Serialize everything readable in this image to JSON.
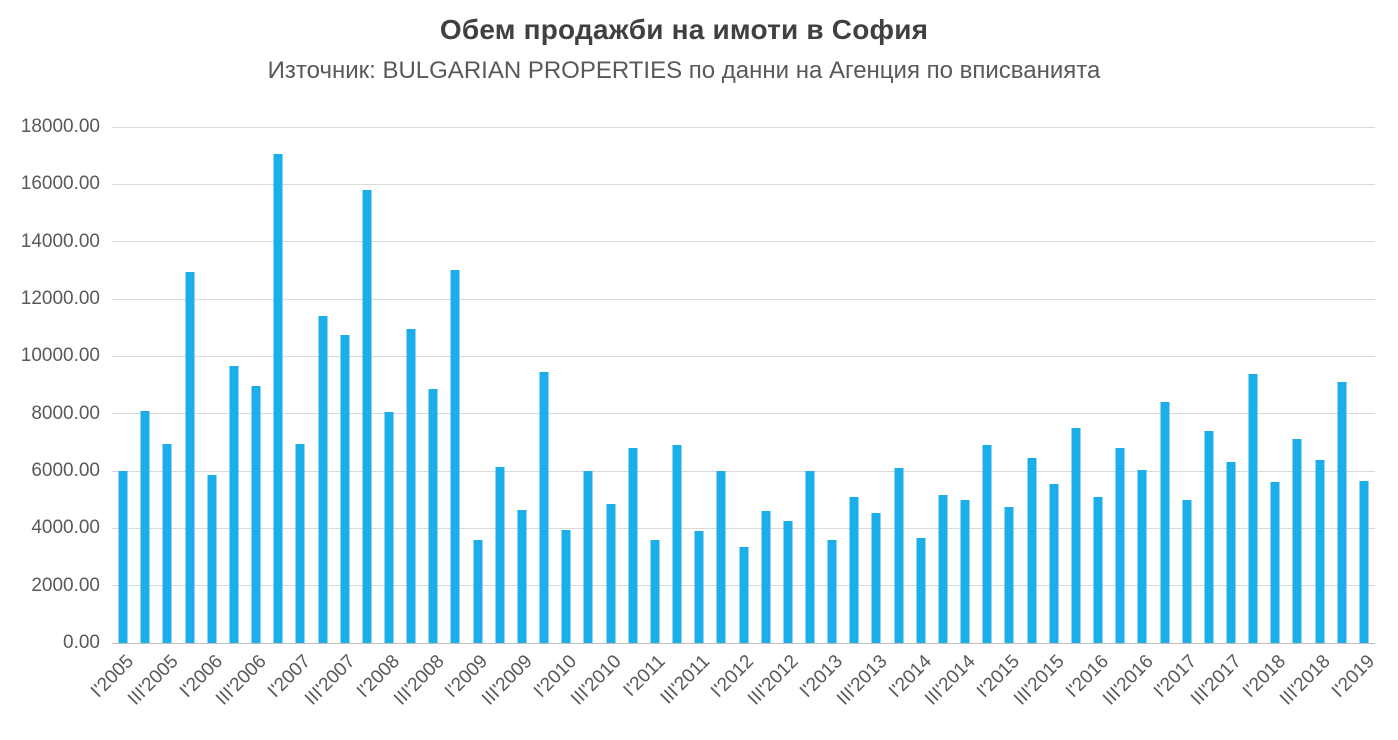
{
  "chart_data": {
    "type": "bar",
    "title": "Обем продажби на имоти в София",
    "subtitle": "Източник: BULGARIAN PROPERTIES по данни на Агенция по вписванията",
    "categories": [
      "I'2005",
      "II'2005",
      "III'2005",
      "IV'2005",
      "I'2006",
      "II'2006",
      "III'2006",
      "IV'2006",
      "I'2007",
      "II'2007",
      "III'2007",
      "IV'2007",
      "I'2008",
      "II'2008",
      "III'2008",
      "IV'2008",
      "I'2009",
      "II'2009",
      "III'2009",
      "IV'2009",
      "I'2010",
      "II'2010",
      "III'2010",
      "IV'2010",
      "I'2011",
      "II'2011",
      "III'2011",
      "IV'2011",
      "I'2012",
      "II'2012",
      "III'2012",
      "IV'2012",
      "I'2013",
      "II'2013",
      "III'2013",
      "IV'2013",
      "I'2014",
      "II'2014",
      "III'2014",
      "IV'2014",
      "I'2015",
      "II'2015",
      "III'2015",
      "IV'2015",
      "I'2016",
      "II'2016",
      "III'2016",
      "IV'2016",
      "I'2017",
      "II'2017",
      "III'2017",
      "IV'2017",
      "I'2018",
      "II'2018",
      "III'2018",
      "IV'2018",
      "I'2019"
    ],
    "values": [
      6000,
      8100,
      6950,
      12950,
      5850,
      9650,
      8950,
      17050,
      6950,
      11400,
      10750,
      15800,
      8050,
      10950,
      8850,
      13000,
      3600,
      6150,
      4650,
      9450,
      3950,
      6000,
      4850,
      6800,
      3600,
      6900,
      3900,
      6000,
      3350,
      4600,
      4250,
      6000,
      3600,
      5100,
      4550,
      6100,
      3650,
      5150,
      5000,
      6900,
      4750,
      6450,
      5550,
      7500,
      5100,
      6800,
      6050,
      8400,
      5000,
      7400,
      6300,
      9400,
      5600,
      7100,
      6400,
      9100,
      5650
    ],
    "x_tick_labels": [
      "I'2005",
      "III'2005",
      "I'2006",
      "III'2006",
      "I'2007",
      "III'2007",
      "I'2008",
      "III'2008",
      "I'2009",
      "III'2009",
      "I'2010",
      "III'2010",
      "I'2011",
      "III'2011",
      "I'2012",
      "III'2012",
      "I'2013",
      "III'2013",
      "I'2014",
      "III'2014",
      "I'2015",
      "III'2015",
      "I'2016",
      "III'2016",
      "I'2017",
      "III'2017",
      "I'2018",
      "III'2018",
      "I'2019"
    ],
    "x_tick_every": 2,
    "y_tick_labels": [
      "0.00",
      "2000.00",
      "4000.00",
      "6000.00",
      "8000.00",
      "10000.00",
      "12000.00",
      "14000.00",
      "16000.00",
      "18000.00"
    ],
    "y_tick_values": [
      0,
      2000,
      4000,
      6000,
      8000,
      10000,
      12000,
      14000,
      16000,
      18000
    ],
    "ylim": [
      0,
      18000
    ],
    "grid": "horizontal",
    "legend": "none",
    "colors": {
      "bar": "#1BAEE8",
      "title_text": "#404040",
      "axis_text": "#595959",
      "gridline": "#D9D9D9",
      "axis_line": "#BFBFBF",
      "background": "#FFFFFF"
    }
  }
}
